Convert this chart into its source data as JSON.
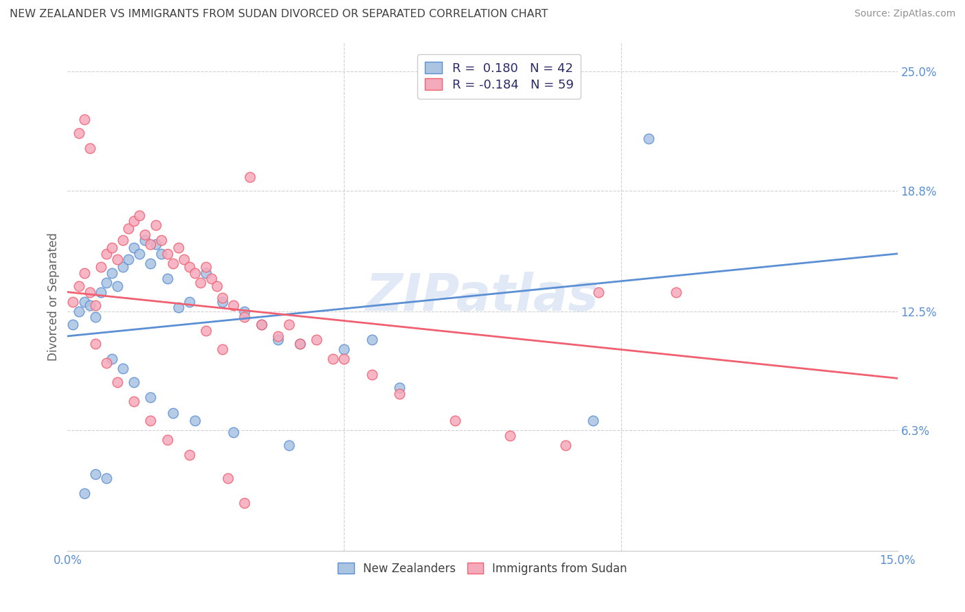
{
  "title": "NEW ZEALANDER VS IMMIGRANTS FROM SUDAN DIVORCED OR SEPARATED CORRELATION CHART",
  "source": "Source: ZipAtlas.com",
  "ylabel": "Divorced or Separated",
  "xlim": [
    0.0,
    0.15
  ],
  "ylim": [
    0.0,
    0.265
  ],
  "ytick_labels_right": [
    "25.0%",
    "18.8%",
    "12.5%",
    "6.3%"
  ],
  "ytick_positions_right": [
    0.25,
    0.188,
    0.125,
    0.063
  ],
  "watermark": "ZIPatlas",
  "legend_r1": "R =  0.180   N = 42",
  "legend_r2": "R = -0.184   N = 59",
  "blue_color": "#aac4e2",
  "pink_color": "#f5aabb",
  "blue_line_color": "#5b8fd4",
  "pink_line_color": "#f06070",
  "title_color": "#404040",
  "source_color": "#909090",
  "nz_scatter_x": [
    0.001,
    0.002,
    0.003,
    0.004,
    0.005,
    0.006,
    0.007,
    0.008,
    0.009,
    0.01,
    0.011,
    0.012,
    0.013,
    0.014,
    0.015,
    0.016,
    0.017,
    0.018,
    0.02,
    0.022,
    0.025,
    0.028,
    0.032,
    0.035,
    0.038,
    0.042,
    0.05,
    0.055,
    0.008,
    0.01,
    0.012,
    0.015,
    0.019,
    0.023,
    0.03,
    0.04,
    0.06,
    0.095,
    0.105,
    0.005,
    0.007,
    0.003
  ],
  "nz_scatter_y": [
    0.118,
    0.125,
    0.13,
    0.128,
    0.122,
    0.135,
    0.14,
    0.145,
    0.138,
    0.148,
    0.152,
    0.158,
    0.155,
    0.162,
    0.15,
    0.16,
    0.155,
    0.142,
    0.127,
    0.13,
    0.145,
    0.13,
    0.125,
    0.118,
    0.11,
    0.108,
    0.105,
    0.11,
    0.1,
    0.095,
    0.088,
    0.08,
    0.072,
    0.068,
    0.062,
    0.055,
    0.085,
    0.068,
    0.215,
    0.04,
    0.038,
    0.03
  ],
  "sudan_scatter_x": [
    0.001,
    0.002,
    0.003,
    0.004,
    0.005,
    0.006,
    0.007,
    0.008,
    0.009,
    0.01,
    0.011,
    0.012,
    0.013,
    0.014,
    0.015,
    0.016,
    0.017,
    0.018,
    0.019,
    0.02,
    0.021,
    0.022,
    0.023,
    0.024,
    0.025,
    0.026,
    0.027,
    0.028,
    0.03,
    0.032,
    0.035,
    0.038,
    0.042,
    0.048,
    0.002,
    0.003,
    0.004,
    0.033,
    0.096,
    0.11,
    0.04,
    0.045,
    0.05,
    0.055,
    0.06,
    0.07,
    0.08,
    0.09,
    0.025,
    0.028,
    0.005,
    0.007,
    0.009,
    0.012,
    0.015,
    0.018,
    0.022,
    0.029,
    0.032
  ],
  "sudan_scatter_y": [
    0.13,
    0.138,
    0.145,
    0.135,
    0.128,
    0.148,
    0.155,
    0.158,
    0.152,
    0.162,
    0.168,
    0.172,
    0.175,
    0.165,
    0.16,
    0.17,
    0.162,
    0.155,
    0.15,
    0.158,
    0.152,
    0.148,
    0.145,
    0.14,
    0.148,
    0.142,
    0.138,
    0.132,
    0.128,
    0.122,
    0.118,
    0.112,
    0.108,
    0.1,
    0.218,
    0.225,
    0.21,
    0.195,
    0.135,
    0.135,
    0.118,
    0.11,
    0.1,
    0.092,
    0.082,
    0.068,
    0.06,
    0.055,
    0.115,
    0.105,
    0.108,
    0.098,
    0.088,
    0.078,
    0.068,
    0.058,
    0.05,
    0.038,
    0.025
  ],
  "blue_line_x0": 0.0,
  "blue_line_y0": 0.112,
  "blue_line_x1": 0.15,
  "blue_line_y1": 0.155,
  "pink_line_x0": 0.0,
  "pink_line_y0": 0.135,
  "pink_line_x1": 0.15,
  "pink_line_y1": 0.09
}
